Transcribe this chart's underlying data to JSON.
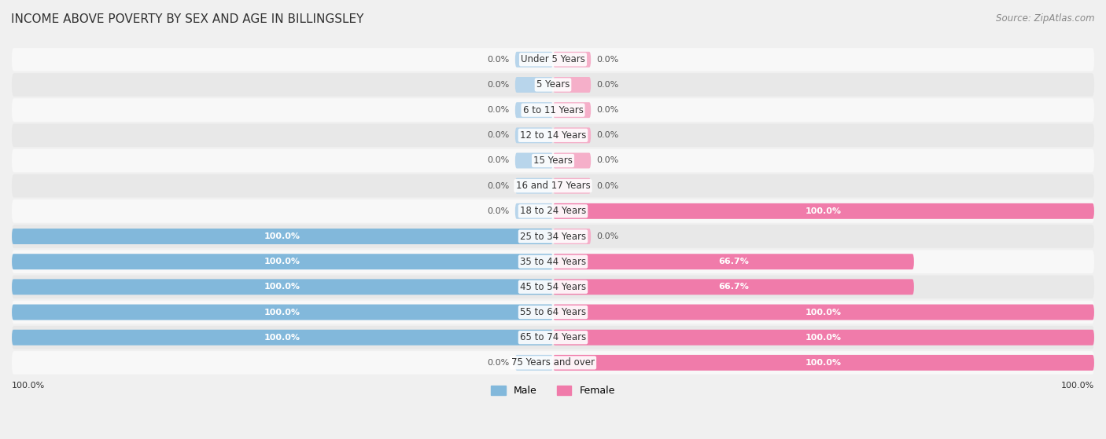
{
  "title": "INCOME ABOVE POVERTY BY SEX AND AGE IN BILLINGSLEY",
  "source": "Source: ZipAtlas.com",
  "categories": [
    "Under 5 Years",
    "5 Years",
    "6 to 11 Years",
    "12 to 14 Years",
    "15 Years",
    "16 and 17 Years",
    "18 to 24 Years",
    "25 to 34 Years",
    "35 to 44 Years",
    "45 to 54 Years",
    "55 to 64 Years",
    "65 to 74 Years",
    "75 Years and over"
  ],
  "male": [
    0.0,
    0.0,
    0.0,
    0.0,
    0.0,
    0.0,
    0.0,
    100.0,
    100.0,
    100.0,
    100.0,
    100.0,
    0.0
  ],
  "female": [
    0.0,
    0.0,
    0.0,
    0.0,
    0.0,
    0.0,
    100.0,
    0.0,
    66.7,
    66.7,
    100.0,
    100.0,
    100.0
  ],
  "male_color": "#82b8db",
  "female_color": "#f07baa",
  "male_color_light": "#b8d5eb",
  "female_color_light": "#f5afc9",
  "male_label": "Male",
  "female_label": "Female",
  "bg_color": "#f0f0f0",
  "row_bg_color": "#e8e8e8",
  "row_alt_color": "#f8f8f8",
  "text_color": "#333333",
  "label_inside_color": "#ffffff",
  "label_outside_color": "#555555",
  "max_val": 100.0,
  "bar_height": 0.62,
  "stub_size": 7.0,
  "title_fontsize": 11,
  "label_fontsize": 8,
  "category_fontsize": 8.5,
  "source_fontsize": 8.5
}
